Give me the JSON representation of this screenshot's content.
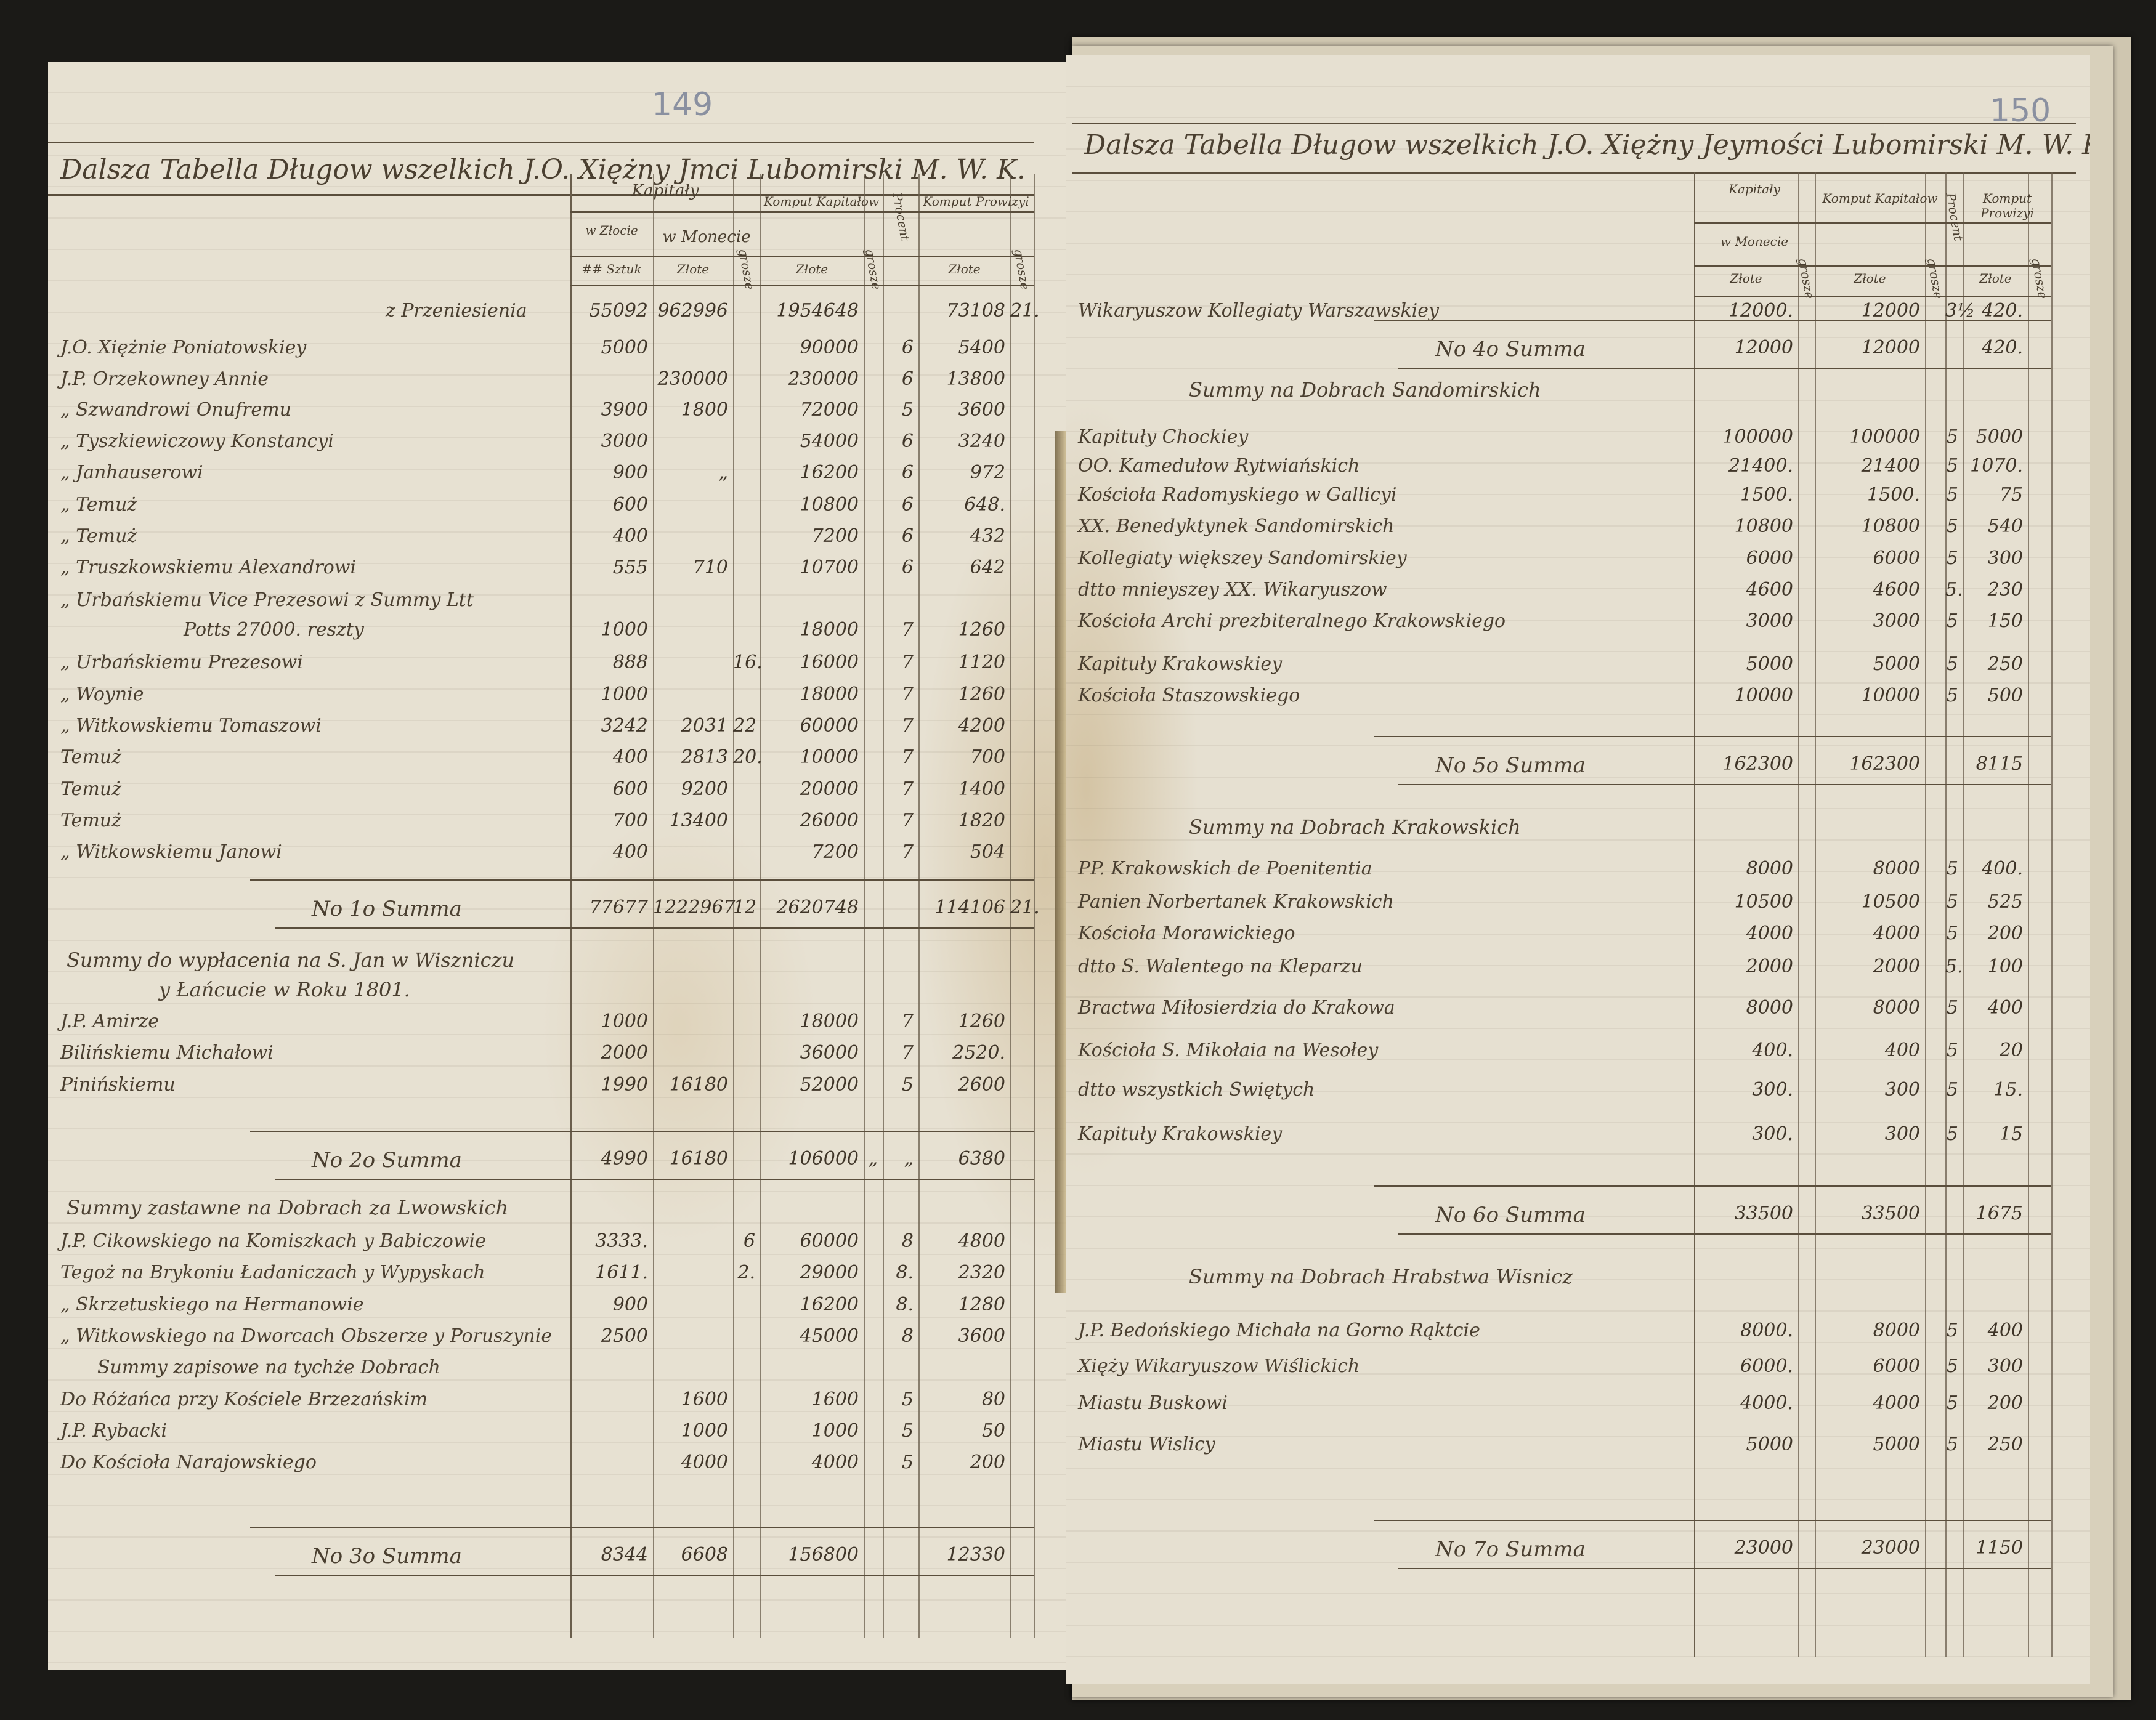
{
  "left_page": {
    "page_number": "149",
    "title": "Dalsza Tabella Długow wszelkich J.O. Xiężny Jmci Lubomirski M. W. K.",
    "headers": {
      "kapitaly": "Kapitały",
      "w_zlocie": "w Złocie",
      "w_monecie": "w Monecie",
      "komput_kapitalow": "Komput Kapitałow",
      "procent": "Procent",
      "komput_prowizyi": "Komput Prowizyi",
      "sztuk": "## Sztuk",
      "zlote1": "Złote",
      "grosze1": "grosze",
      "zlote2": "Złote",
      "grosze2": "grosze",
      "zlote3": "Złote",
      "grosze3": "grosze"
    },
    "rows": [
      {
        "type": "carry",
        "name": "z Przeniesienia",
        "values": [
          "55092",
          "962996",
          "",
          "1954648",
          "",
          "",
          "73108",
          "21."
        ]
      },
      {
        "type": "entry",
        "name": "J.O. Xiężnie Poniatowskiey",
        "values": [
          "5000",
          "",
          "",
          "90000",
          "",
          "6",
          "5400",
          ""
        ]
      },
      {
        "type": "entry",
        "name": "J.P. Orzekowney Annie",
        "values": [
          "",
          "230000",
          "",
          "230000",
          "",
          "6",
          "13800",
          ""
        ]
      },
      {
        "type": "entry",
        "name": "„ Szwandrowi Onufremu",
        "values": [
          "3900",
          "1800",
          "",
          "72000",
          "",
          "5",
          "3600",
          ""
        ]
      },
      {
        "type": "entry",
        "name": "„ Tyszkiewiczowy Konstancyi",
        "values": [
          "3000",
          "",
          "",
          "54000",
          "",
          "6",
          "3240",
          ""
        ]
      },
      {
        "type": "entry",
        "name": "„ Janhauserowi",
        "values": [
          "900",
          "„",
          "",
          "16200",
          "",
          "6",
          "972",
          ""
        ]
      },
      {
        "type": "entry",
        "name": "„ Temuż",
        "values": [
          "600",
          "",
          "",
          "10800",
          "",
          "6",
          "648.",
          ""
        ]
      },
      {
        "type": "entry",
        "name": "„ Temuż",
        "values": [
          "400",
          "",
          "",
          "7200",
          "",
          "6",
          "432",
          ""
        ]
      },
      {
        "type": "entry",
        "name": "„ Truszkowskiemu Alexandrowi",
        "values": [
          "555",
          "710",
          "",
          "10700",
          "",
          "6",
          "642",
          ""
        ]
      },
      {
        "type": "entry2",
        "name": "„ Urbańskiemu Vice Prezesowi z Summy Ltt",
        "name2": "Potts 27000. reszty",
        "values": [
          "1000",
          "",
          "",
          "18000",
          "",
          "7",
          "1260",
          ""
        ]
      },
      {
        "type": "entry",
        "name": "„ Urbańskiemu Prezesowi",
        "values": [
          "888",
          "",
          "16.",
          "16000",
          "",
          "7",
          "1120",
          ""
        ]
      },
      {
        "type": "entry",
        "name": "„ Woynie",
        "values": [
          "1000",
          "",
          "",
          "18000",
          "",
          "7",
          "1260",
          ""
        ]
      },
      {
        "type": "entry",
        "name": "„ Witkowskiemu Tomaszowi",
        "values": [
          "3242",
          "2031",
          "22",
          "60000",
          "",
          "7",
          "4200",
          ""
        ]
      },
      {
        "type": "entry",
        "name": "Temuż",
        "values": [
          "400",
          "2813",
          "20.",
          "10000",
          "",
          "7",
          "700",
          ""
        ]
      },
      {
        "type": "entry",
        "name": "Temuż",
        "values": [
          "600",
          "9200",
          "",
          "20000",
          "",
          "7",
          "1400",
          ""
        ]
      },
      {
        "type": "entry",
        "name": "Temuż",
        "values": [
          "700",
          "13400",
          "",
          "26000",
          "",
          "7",
          "1820",
          ""
        ]
      },
      {
        "type": "entry",
        "name": "„ Witkowskiemu Janowi",
        "values": [
          "400",
          "",
          "",
          "7200",
          "",
          "7",
          "504",
          ""
        ]
      },
      {
        "type": "summa",
        "name": "No 1o Summa",
        "values": [
          "77677",
          "1222967",
          "12",
          "2620748",
          "",
          "",
          "114106",
          "21."
        ]
      },
      {
        "type": "section2",
        "name": "Summy do wypłacenia na S. Jan w Wiszniczu",
        "name2": "y Łańcucie w Roku 1801.",
        "values": []
      },
      {
        "type": "entry",
        "name": "J.P. Amirze",
        "values": [
          "1000",
          "",
          "",
          "18000",
          "",
          "7",
          "1260",
          ""
        ]
      },
      {
        "type": "entry",
        "name": "Bilińskiemu Michałowi",
        "values": [
          "2000",
          "",
          "",
          "36000",
          "",
          "7",
          "2520.",
          ""
        ]
      },
      {
        "type": "entry",
        "name": "Pinińskiemu",
        "values": [
          "1990",
          "16180",
          "",
          "52000",
          "",
          "5",
          "2600",
          ""
        ]
      },
      {
        "type": "summa",
        "name": "No 2o Summa",
        "values": [
          "4990",
          "16180",
          "",
          "106000",
          "„",
          "„",
          "6380",
          ""
        ]
      },
      {
        "type": "section",
        "name": "Summy zastawne na Dobrach za Lwowskich",
        "values": []
      },
      {
        "type": "entry",
        "name": "J.P. Cikowskiego na Komiszkach y Babiczowie",
        "values": [
          "3333.",
          "",
          "6",
          "60000",
          "",
          "8",
          "4800",
          ""
        ]
      },
      {
        "type": "entry",
        "name": "Tegoż na Brykoniu Ładaniczach y Wypyskach",
        "values": [
          "1611.",
          "",
          "2.",
          "29000",
          "",
          "8.",
          "2320",
          ""
        ]
      },
      {
        "type": "entry",
        "name": "„ Skrzetuskiego na Hermanowie",
        "values": [
          "900",
          "",
          "",
          "16200",
          "",
          "8.",
          "1280",
          ""
        ]
      },
      {
        "type": "entry",
        "name": "„ Witkowskiego na Dworcach Obszerze y Poruszynie",
        "values": [
          "2500",
          "",
          "",
          "45000",
          "",
          "8",
          "3600",
          ""
        ]
      },
      {
        "type": "subsection",
        "name": "Summy zapisowe na tychże Dobrach",
        "values": []
      },
      {
        "type": "entry",
        "name": "Do Różańca przy Kościele Brzezańskim",
        "values": [
          "",
          "1600",
          "",
          "1600",
          "",
          "5",
          "80",
          ""
        ]
      },
      {
        "type": "entry",
        "name": "J.P. Rybacki",
        "values": [
          "",
          "1000",
          "",
          "1000",
          "",
          "5",
          "50",
          ""
        ]
      },
      {
        "type": "entry",
        "name": "Do Kościoła Narajowskiego",
        "values": [
          "",
          "4000",
          "",
          "4000",
          "",
          "5",
          "200",
          ""
        ]
      },
      {
        "type": "summa",
        "name": "No 3o Summa",
        "values": [
          "8344",
          "6608",
          "",
          "156800",
          "",
          "",
          "12330",
          ""
        ]
      }
    ]
  },
  "right_page": {
    "page_number": "150",
    "title": "Dalsza Tabella Długow wszelkich J.O. Xiężny Jeymości Lubomirski M. W. K.",
    "headers": {
      "kapitaly": "Kapitały",
      "w_monecie": "w Monecie",
      "komput_kapitalow": "Komput Kapitałow",
      "procent": "Procent",
      "komput_prowizyi": "Komput Prowizyi",
      "zlote1": "Złote",
      "grosze1": "grosze",
      "zlote2": "Złote",
      "grosze2": "grosze",
      "zlote3": "Złote",
      "grosze3": "grosze"
    },
    "rows": [
      {
        "type": "entry",
        "name": "Wikaryuszow Kollegiaty Warszawskiey",
        "values": [
          "12000.",
          "",
          "12000",
          "",
          "3½",
          "420.",
          ""
        ]
      },
      {
        "type": "summa",
        "name": "No 4o Summa",
        "values": [
          "12000",
          "",
          "12000",
          "",
          "",
          "420.",
          ""
        ]
      },
      {
        "type": "section",
        "name": "Summy na Dobrach Sandomirskich",
        "values": []
      },
      {
        "type": "entry",
        "name": "Kapituły Chockiey",
        "values": [
          "100000",
          "",
          "100000",
          "",
          "5",
          "5000",
          ""
        ]
      },
      {
        "type": "entry",
        "name": "OO. Kamedułow Rytwiańskich",
        "values": [
          "21400.",
          "",
          "21400",
          "",
          "5",
          "1070.",
          ""
        ]
      },
      {
        "type": "entry",
        "name": "Kościoła Radomyskiego w Gallicyi",
        "values": [
          "1500.",
          "",
          "1500.",
          "",
          "5",
          "75",
          ""
        ]
      },
      {
        "type": "entry",
        "name": "XX. Benedyktynek Sandomirskich",
        "values": [
          "10800",
          "",
          "10800",
          "",
          "5",
          "540",
          ""
        ]
      },
      {
        "type": "entry",
        "name": "Kollegiaty większey Sandomirskiey",
        "values": [
          "6000",
          "",
          "6000",
          "",
          "5",
          "300",
          ""
        ]
      },
      {
        "type": "entry",
        "name": "dtto mnieyszey XX. Wikaryuszow",
        "values": [
          "4600",
          "",
          "4600",
          "",
          "5.",
          "230",
          ""
        ]
      },
      {
        "type": "entry",
        "name": "Kościoła Archi prezbiteralnego Krakowskiego",
        "values": [
          "3000",
          "",
          "3000",
          "",
          "5",
          "150",
          ""
        ]
      },
      {
        "type": "entry",
        "name": "Kapituły Krakowskiey",
        "values": [
          "5000",
          "",
          "5000",
          "",
          "5",
          "250",
          ""
        ]
      },
      {
        "type": "entry",
        "name": "Kościoła Staszowskiego",
        "values": [
          "10000",
          "",
          "10000",
          "",
          "5",
          "500",
          ""
        ]
      },
      {
        "type": "summa",
        "name": "No 5o Summa",
        "values": [
          "162300",
          "",
          "162300",
          "",
          "",
          "8115",
          ""
        ]
      },
      {
        "type": "section",
        "name": "Summy na Dobrach Krakowskich",
        "values": []
      },
      {
        "type": "entry",
        "name": "PP. Krakowskich de Poenitentia",
        "values": [
          "8000",
          "",
          "8000",
          "",
          "5",
          "400.",
          ""
        ]
      },
      {
        "type": "entry",
        "name": "Panien Norbertanek Krakowskich",
        "values": [
          "10500",
          "",
          "10500",
          "",
          "5",
          "525",
          ""
        ]
      },
      {
        "type": "entry",
        "name": "Kościoła Morawickiego",
        "values": [
          "4000",
          "",
          "4000",
          "",
          "5",
          "200",
          ""
        ]
      },
      {
        "type": "entry",
        "name": "dtto S. Walentego na Kleparzu",
        "values": [
          "2000",
          "",
          "2000",
          "",
          "5.",
          "100",
          ""
        ]
      },
      {
        "type": "entry",
        "name": "Bractwa Miłosierdzia do Krakowa",
        "values": [
          "8000",
          "",
          "8000",
          "",
          "5",
          "400",
          ""
        ]
      },
      {
        "type": "entry",
        "name": "Kościoła S. Mikołaia na Wesołey",
        "values": [
          "400.",
          "",
          "400",
          "",
          "5",
          "20",
          ""
        ]
      },
      {
        "type": "entry",
        "name": "dtto wszystkich Swiętych",
        "values": [
          "300.",
          "",
          "300",
          "",
          "5",
          "15.",
          ""
        ]
      },
      {
        "type": "entry",
        "name": "Kapituły Krakowskiey",
        "values": [
          "300.",
          "",
          "300",
          "",
          "5",
          "15",
          ""
        ]
      },
      {
        "type": "summa",
        "name": "No 6o Summa",
        "values": [
          "33500",
          "",
          "33500",
          "",
          "",
          "1675",
          ""
        ]
      },
      {
        "type": "section",
        "name": "Summy na Dobrach Hrabstwa Wisnicz",
        "values": []
      },
      {
        "type": "entry",
        "name": "J.P. Bedońskiego Michała na Gorno Rąktcie",
        "values": [
          "8000.",
          "",
          "8000",
          "",
          "5",
          "400",
          ""
        ]
      },
      {
        "type": "entry",
        "name": "Xięży Wikaryuszow Wiślickich",
        "values": [
          "6000.",
          "",
          "6000",
          "",
          "5",
          "300",
          ""
        ]
      },
      {
        "type": "entry",
        "name": "Miastu Buskowi",
        "values": [
          "4000.",
          "",
          "4000",
          "",
          "5",
          "200",
          ""
        ]
      },
      {
        "type": "entry",
        "name": "Miastu Wislicy",
        "values": [
          "5000",
          "",
          "5000",
          "",
          "5",
          "250",
          ""
        ]
      },
      {
        "type": "summa",
        "name": "No 7o Summa",
        "values": [
          "23000",
          "",
          "23000",
          "",
          "",
          "1150",
          ""
        ]
      }
    ]
  },
  "colors": {
    "ink": "#4a3f30",
    "paper": "#e7e1d2",
    "background": "#1b1a17",
    "pencil": "#8a90a0"
  }
}
